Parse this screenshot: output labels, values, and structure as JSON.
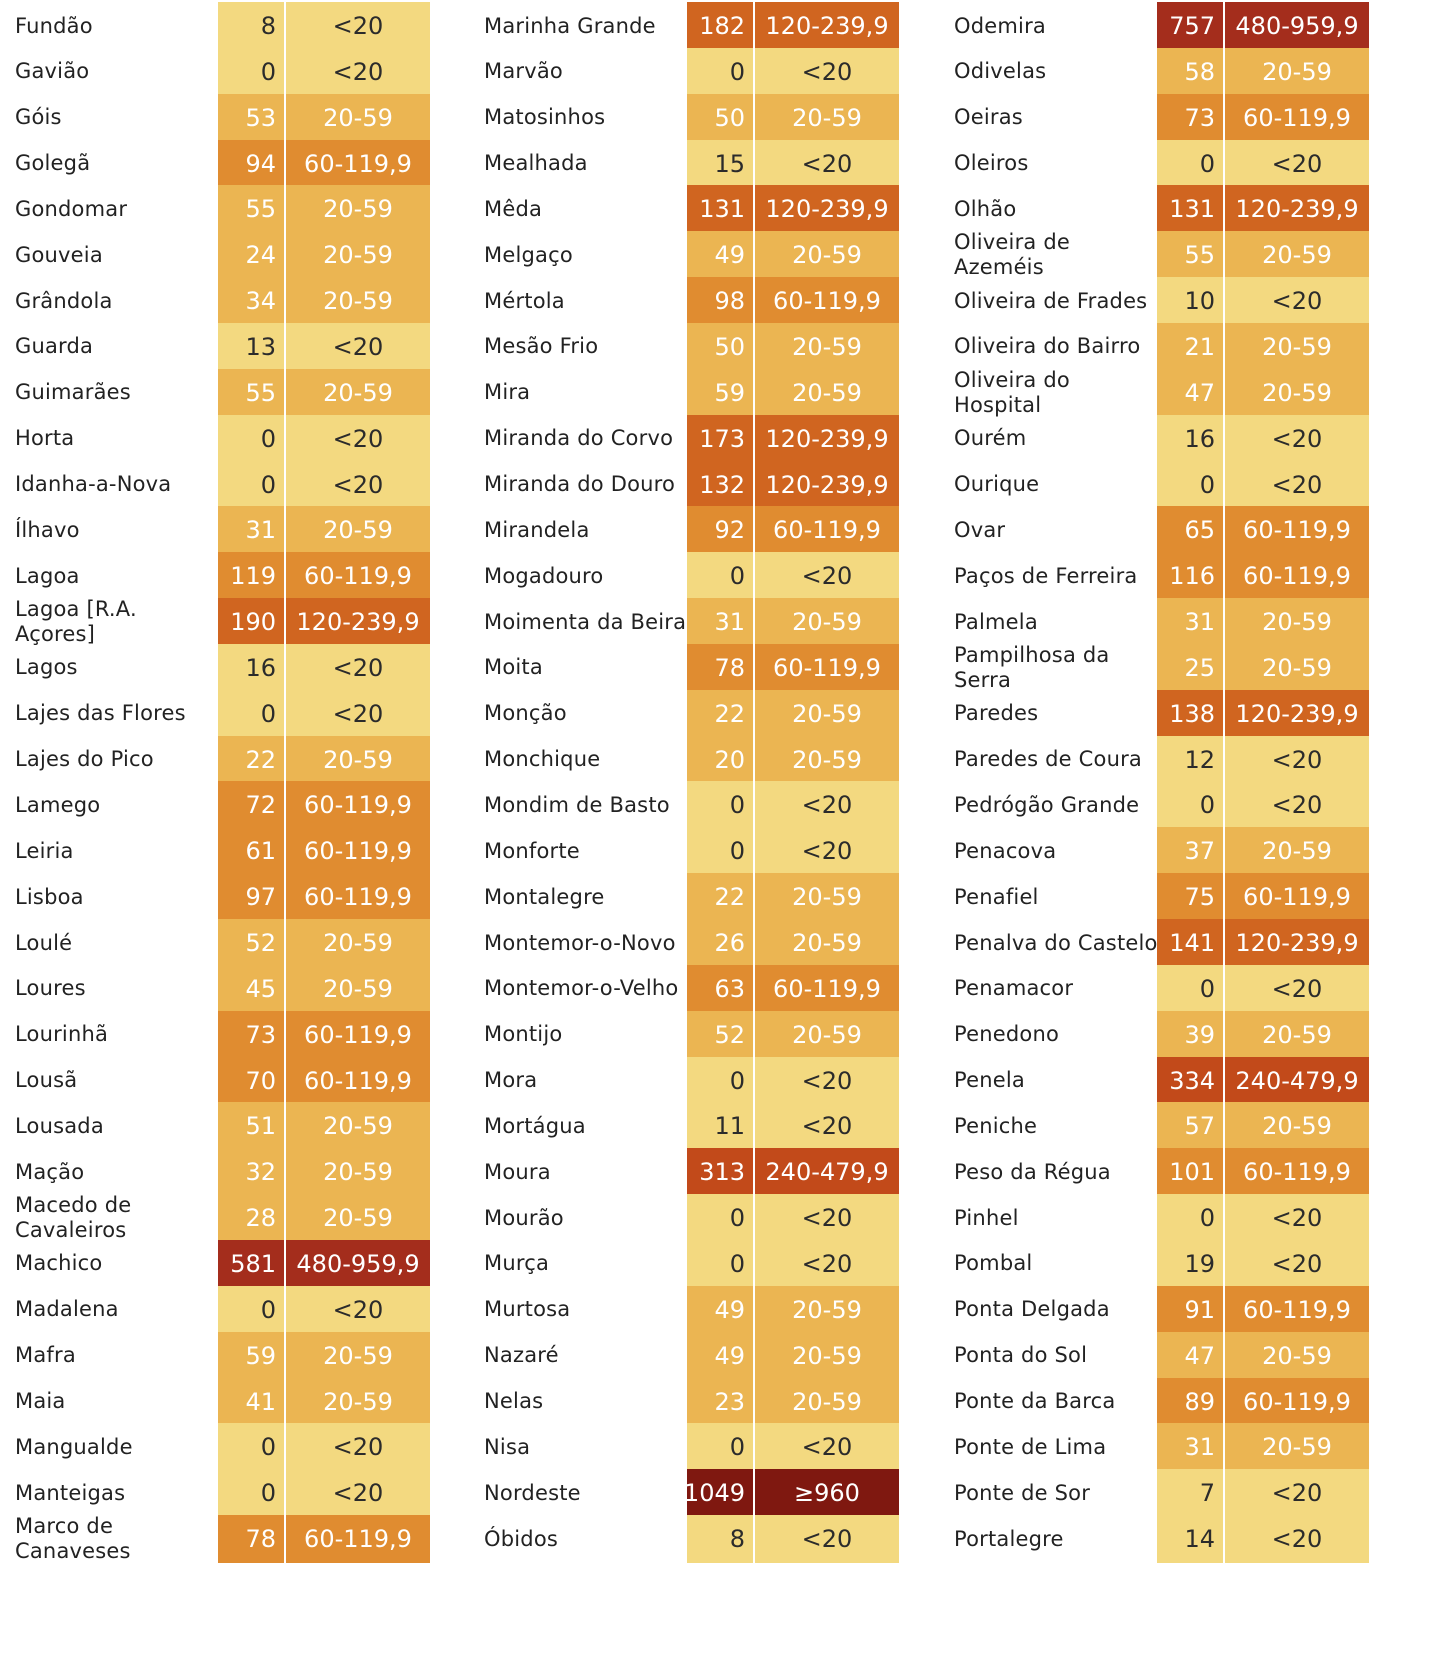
{
  "legend_colors": {
    "<20": "#f3d980",
    "20-59": "#ebb552",
    "60-119,9": "#e08c30",
    "120-239,9": "#d06520",
    "240-479,9": "#c24a1a",
    "480-959,9": "#a42d1c",
    "≥960": "#7f1810"
  },
  "chart_data": {
    "type": "table",
    "columns": [
      [
        {
          "name": "Fundão",
          "value": "8",
          "class": "<20"
        },
        {
          "name": "Gavião",
          "value": "0",
          "class": "<20"
        },
        {
          "name": "Góis",
          "value": "53",
          "class": "20-59"
        },
        {
          "name": "Golegã",
          "value": "94",
          "class": "60-119,9"
        },
        {
          "name": "Gondomar",
          "value": "55",
          "class": "20-59"
        },
        {
          "name": "Gouveia",
          "value": "24",
          "class": "20-59"
        },
        {
          "name": "Grândola",
          "value": "34",
          "class": "20-59"
        },
        {
          "name": "Guarda",
          "value": "13",
          "class": "<20"
        },
        {
          "name": "Guimarães",
          "value": "55",
          "class": "20-59"
        },
        {
          "name": "Horta",
          "value": "0",
          "class": "<20"
        },
        {
          "name": "Idanha-a-Nova",
          "value": "0",
          "class": "<20"
        },
        {
          "name": "Ílhavo",
          "value": "31",
          "class": "20-59"
        },
        {
          "name": "Lagoa",
          "value": "119",
          "class": "60-119,9"
        },
        {
          "name": "Lagoa [R.A. Açores]",
          "value": "190",
          "class": "120-239,9"
        },
        {
          "name": "Lagos",
          "value": "16",
          "class": "<20"
        },
        {
          "name": "Lajes das Flores",
          "value": "0",
          "class": "<20"
        },
        {
          "name": "Lajes do Pico",
          "value": "22",
          "class": "20-59"
        },
        {
          "name": "Lamego",
          "value": "72",
          "class": "60-119,9"
        },
        {
          "name": "Leiria",
          "value": "61",
          "class": "60-119,9"
        },
        {
          "name": "Lisboa",
          "value": "97",
          "class": "60-119,9"
        },
        {
          "name": "Loulé",
          "value": "52",
          "class": "20-59"
        },
        {
          "name": "Loures",
          "value": "45",
          "class": "20-59"
        },
        {
          "name": "Lourinhã",
          "value": "73",
          "class": "60-119,9"
        },
        {
          "name": "Lousã",
          "value": "70",
          "class": "60-119,9"
        },
        {
          "name": "Lousada",
          "value": "51",
          "class": "20-59"
        },
        {
          "name": "Mação",
          "value": "32",
          "class": "20-59"
        },
        {
          "name": "Macedo de Cavaleiros",
          "value": "28",
          "class": "20-59"
        },
        {
          "name": "Machico",
          "value": "581",
          "class": "480-959,9"
        },
        {
          "name": "Madalena",
          "value": "0",
          "class": "<20"
        },
        {
          "name": "Mafra",
          "value": "59",
          "class": "20-59"
        },
        {
          "name": "Maia",
          "value": "41",
          "class": "20-59"
        },
        {
          "name": "Mangualde",
          "value": "0",
          "class": "<20"
        },
        {
          "name": "Manteigas",
          "value": "0",
          "class": "<20"
        },
        {
          "name": "Marco de Canaveses",
          "value": "78",
          "class": "60-119,9"
        }
      ],
      [
        {
          "name": "Marinha Grande",
          "value": "182",
          "class": "120-239,9"
        },
        {
          "name": "Marvão",
          "value": "0",
          "class": "<20"
        },
        {
          "name": "Matosinhos",
          "value": "50",
          "class": "20-59"
        },
        {
          "name": "Mealhada",
          "value": "15",
          "class": "<20"
        },
        {
          "name": "Mêda",
          "value": "131",
          "class": "120-239,9"
        },
        {
          "name": "Melgaço",
          "value": "49",
          "class": "20-59"
        },
        {
          "name": "Mértola",
          "value": "98",
          "class": "60-119,9"
        },
        {
          "name": "Mesão Frio",
          "value": "50",
          "class": "20-59"
        },
        {
          "name": "Mira",
          "value": "59",
          "class": "20-59"
        },
        {
          "name": "Miranda do Corvo",
          "value": "173",
          "class": "120-239,9"
        },
        {
          "name": "Miranda do Douro",
          "value": "132",
          "class": "120-239,9"
        },
        {
          "name": "Mirandela",
          "value": "92",
          "class": "60-119,9"
        },
        {
          "name": "Mogadouro",
          "value": "0",
          "class": "<20"
        },
        {
          "name": "Moimenta da Beira",
          "value": "31",
          "class": "20-59"
        },
        {
          "name": "Moita",
          "value": "78",
          "class": "60-119,9"
        },
        {
          "name": "Monção",
          "value": "22",
          "class": "20-59"
        },
        {
          "name": "Monchique",
          "value": "20",
          "class": "20-59"
        },
        {
          "name": "Mondim de Basto",
          "value": "0",
          "class": "<20"
        },
        {
          "name": "Monforte",
          "value": "0",
          "class": "<20"
        },
        {
          "name": "Montalegre",
          "value": "22",
          "class": "20-59"
        },
        {
          "name": "Montemor-o-Novo",
          "value": "26",
          "class": "20-59"
        },
        {
          "name": "Montemor-o-Velho",
          "value": "63",
          "class": "60-119,9"
        },
        {
          "name": "Montijo",
          "value": "52",
          "class": "20-59"
        },
        {
          "name": "Mora",
          "value": "0",
          "class": "<20"
        },
        {
          "name": "Mortágua",
          "value": "11",
          "class": "<20"
        },
        {
          "name": "Moura",
          "value": "313",
          "class": "240-479,9"
        },
        {
          "name": "Mourão",
          "value": "0",
          "class": "<20"
        },
        {
          "name": "Murça",
          "value": "0",
          "class": "<20"
        },
        {
          "name": "Murtosa",
          "value": "49",
          "class": "20-59"
        },
        {
          "name": "Nazaré",
          "value": "49",
          "class": "20-59"
        },
        {
          "name": "Nelas",
          "value": "23",
          "class": "20-59"
        },
        {
          "name": "Nisa",
          "value": "0",
          "class": "<20"
        },
        {
          "name": "Nordeste",
          "value": "1049",
          "class": "≥960"
        },
        {
          "name": "Óbidos",
          "value": "8",
          "class": "<20"
        }
      ],
      [
        {
          "name": "Odemira",
          "value": "757",
          "class": "480-959,9"
        },
        {
          "name": "Odivelas",
          "value": "58",
          "class": "20-59"
        },
        {
          "name": "Oeiras",
          "value": "73",
          "class": "60-119,9"
        },
        {
          "name": "Oleiros",
          "value": "0",
          "class": "<20"
        },
        {
          "name": "Olhão",
          "value": "131",
          "class": "120-239,9"
        },
        {
          "name": "Oliveira de Azeméis",
          "value": "55",
          "class": "20-59"
        },
        {
          "name": "Oliveira de Frades",
          "value": "10",
          "class": "<20"
        },
        {
          "name": "Oliveira do Bairro",
          "value": "21",
          "class": "20-59"
        },
        {
          "name": "Oliveira do Hospital",
          "value": "47",
          "class": "20-59"
        },
        {
          "name": "Ourém",
          "value": "16",
          "class": "<20"
        },
        {
          "name": "Ourique",
          "value": "0",
          "class": "<20"
        },
        {
          "name": "Ovar",
          "value": "65",
          "class": "60-119,9"
        },
        {
          "name": "Paços de Ferreira",
          "value": "116",
          "class": "60-119,9"
        },
        {
          "name": "Palmela",
          "value": "31",
          "class": "20-59"
        },
        {
          "name": "Pampilhosa da Serra",
          "value": "25",
          "class": "20-59"
        },
        {
          "name": "Paredes",
          "value": "138",
          "class": "120-239,9"
        },
        {
          "name": "Paredes de Coura",
          "value": "12",
          "class": "<20"
        },
        {
          "name": "Pedrógão Grande",
          "value": "0",
          "class": "<20"
        },
        {
          "name": "Penacova",
          "value": "37",
          "class": "20-59"
        },
        {
          "name": "Penafiel",
          "value": "75",
          "class": "60-119,9"
        },
        {
          "name": "Penalva do Castelo",
          "value": "141",
          "class": "120-239,9"
        },
        {
          "name": "Penamacor",
          "value": "0",
          "class": "<20"
        },
        {
          "name": "Penedono",
          "value": "39",
          "class": "20-59"
        },
        {
          "name": "Penela",
          "value": "334",
          "class": "240-479,9"
        },
        {
          "name": "Peniche",
          "value": "57",
          "class": "20-59"
        },
        {
          "name": "Peso da Régua",
          "value": "101",
          "class": "60-119,9"
        },
        {
          "name": "Pinhel",
          "value": "0",
          "class": "<20"
        },
        {
          "name": "Pombal",
          "value": "19",
          "class": "<20"
        },
        {
          "name": "Ponta Delgada",
          "value": "91",
          "class": "60-119,9"
        },
        {
          "name": "Ponta do Sol",
          "value": "47",
          "class": "20-59"
        },
        {
          "name": "Ponte da Barca",
          "value": "89",
          "class": "60-119,9"
        },
        {
          "name": "Ponte de Lima",
          "value": "31",
          "class": "20-59"
        },
        {
          "name": "Ponte de Sor",
          "value": "7",
          "class": "<20"
        },
        {
          "name": "Portalegre",
          "value": "14",
          "class": "<20"
        }
      ]
    ]
  }
}
